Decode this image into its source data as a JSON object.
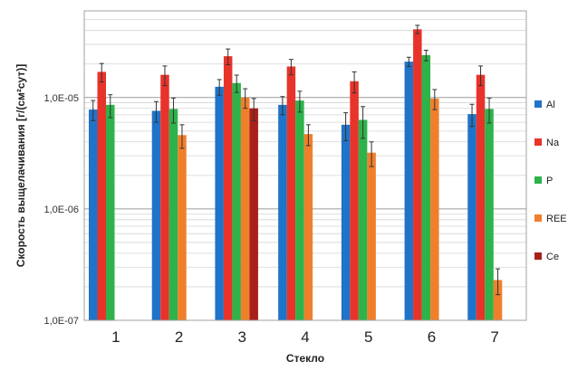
{
  "chart_data": {
    "type": "bar",
    "y_scale": "log",
    "ylim": [
      1e-07,
      6e-05
    ],
    "ylabel": "Скорость выщелачивания [г/(см²сут)]",
    "xlabel": "Стекло",
    "y_ticks": [
      {
        "value": 1e-05,
        "label": "1,0E-05"
      },
      {
        "value": 1e-06,
        "label": "1,0E-06"
      },
      {
        "value": 1e-07,
        "label": "1,0E-07"
      }
    ],
    "categories": [
      "1",
      "2",
      "3",
      "4",
      "5",
      "6",
      "7"
    ],
    "grid": true,
    "legend_position": "right",
    "error_bars": true,
    "series": [
      {
        "name": "Al",
        "color": "#1f73c8",
        "values": [
          7.8e-06,
          7.6e-06,
          1.25e-05,
          8.6e-06,
          5.7e-06,
          2.1e-05,
          7.1e-06
        ],
        "errors": [
          1.6e-06,
          1.6e-06,
          2e-06,
          1.6e-06,
          1.6e-06,
          2e-06,
          1.6e-06
        ]
      },
      {
        "name": "Na",
        "color": "#e8332a",
        "values": [
          1.7e-05,
          1.6e-05,
          2.35e-05,
          1.9e-05,
          1.4e-05,
          4.1e-05,
          1.6e-05
        ],
        "errors": [
          3.2e-06,
          3.2e-06,
          3.8e-06,
          3e-06,
          3e-06,
          3.5e-06,
          3.2e-06
        ]
      },
      {
        "name": "P",
        "color": "#2db34a",
        "values": [
          8.6e-06,
          7.9e-06,
          1.35e-05,
          9.4e-06,
          6.3e-06,
          2.4e-05,
          7.9e-06
        ],
        "errors": [
          2e-06,
          2e-06,
          2.4e-06,
          2e-06,
          2e-06,
          2.6e-06,
          2e-06
        ]
      },
      {
        "name": "REE",
        "color": "#f07f2c",
        "values": [
          null,
          4.6e-06,
          1e-05,
          4.7e-06,
          3.2e-06,
          9.8e-06,
          2.3e-07
        ],
        "errors": [
          null,
          1.1e-06,
          2e-06,
          1e-06,
          8e-07,
          2e-06,
          6e-08
        ]
      },
      {
        "name": "Ce",
        "color": "#a8201a",
        "values": [
          null,
          null,
          8e-06,
          null,
          null,
          null,
          null
        ],
        "errors": [
          null,
          null,
          1.8e-06,
          null,
          null,
          null,
          null
        ]
      }
    ]
  }
}
